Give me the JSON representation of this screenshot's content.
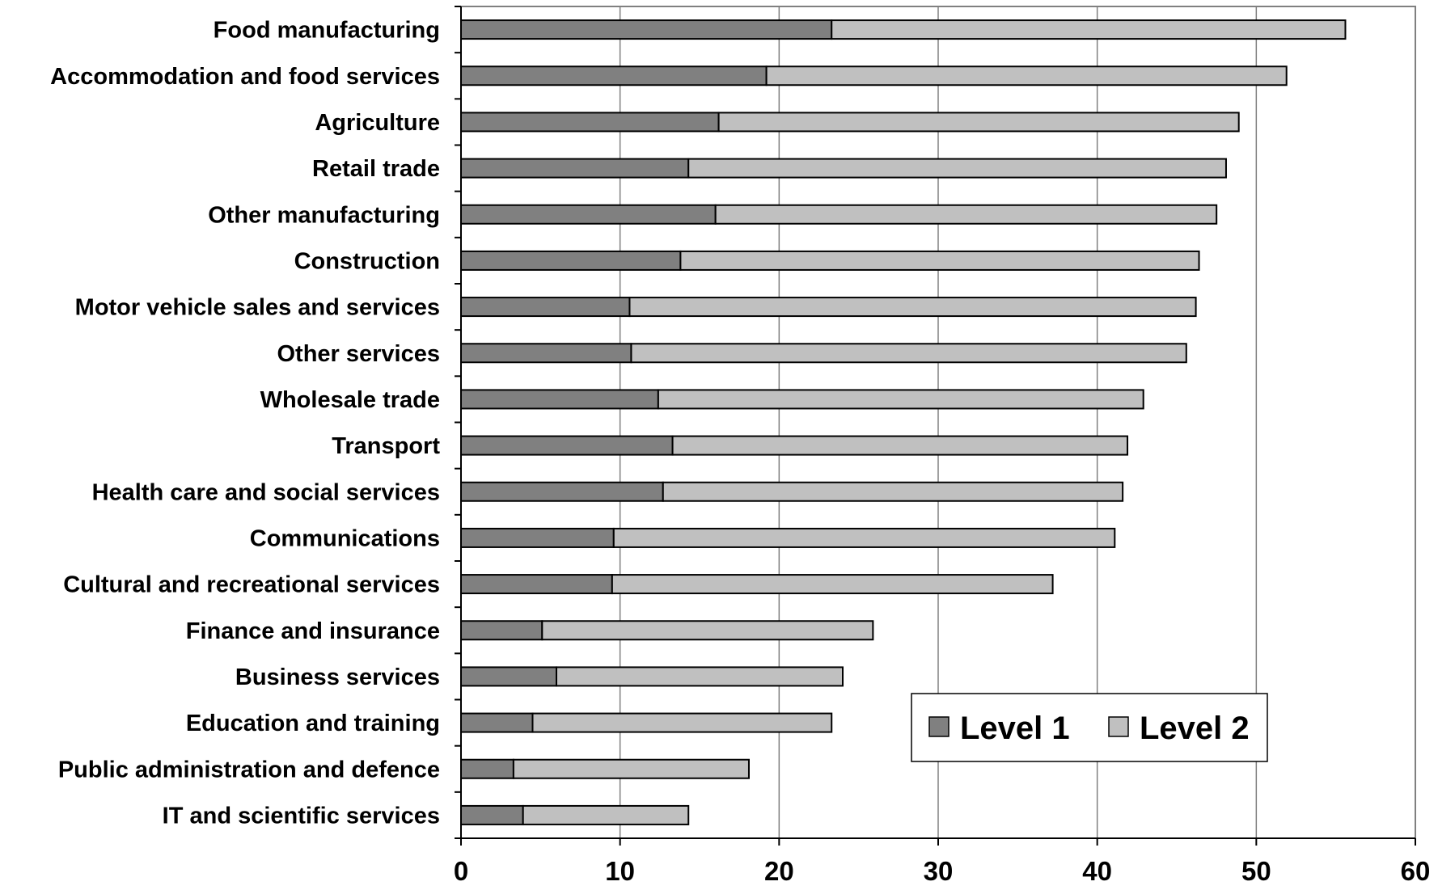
{
  "chart_data": {
    "type": "bar",
    "orientation": "horizontal",
    "stacked": true,
    "title": "",
    "xlabel": "",
    "ylabel": "",
    "xlim": [
      0,
      60
    ],
    "xticks": [
      0,
      10,
      20,
      30,
      40,
      50,
      60
    ],
    "grid": "vertical",
    "legend_position": "bottom-right",
    "categories": [
      "Food manufacturing",
      "Accommodation and food services",
      "Agriculture",
      "Retail trade",
      "Other manufacturing",
      "Construction",
      "Motor vehicle sales and services",
      "Other services",
      "Wholesale trade",
      "Transport",
      "Health care and social services",
      "Communications",
      "Cultural and recreational services",
      "Finance and insurance",
      "Business services",
      "Education and training",
      "Public administration and defence",
      "IT and scientific services"
    ],
    "series": [
      {
        "name": "Level 1",
        "color": "#808080",
        "values": [
          23.3,
          19.2,
          16.2,
          14.3,
          16.0,
          13.8,
          10.6,
          10.7,
          12.4,
          13.3,
          12.7,
          9.6,
          9.5,
          5.1,
          6.0,
          4.5,
          3.3,
          3.9
        ]
      },
      {
        "name": "Level 2",
        "color": "#c0c0c0",
        "values": [
          32.3,
          32.7,
          32.7,
          33.8,
          31.5,
          32.6,
          35.6,
          34.9,
          30.5,
          28.6,
          28.9,
          31.5,
          27.7,
          20.8,
          18.0,
          18.8,
          14.8,
          10.4
        ]
      }
    ]
  }
}
